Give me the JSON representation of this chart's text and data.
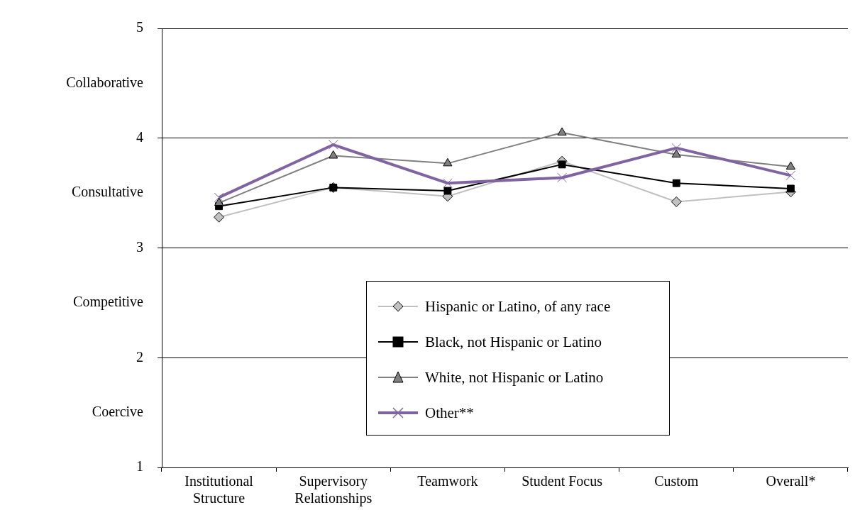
{
  "chart_data": {
    "type": "line",
    "categories": [
      "Institutional\nStructure",
      "Supervisory\nRelationships",
      "Teamwork",
      "Student Focus",
      "Custom",
      "Overall*"
    ],
    "series": [
      {
        "name": "Hispanic or Latino, of any race",
        "color": "#c0c0c0",
        "marker": "diamond",
        "values": [
          3.28,
          3.55,
          3.47,
          3.79,
          3.42,
          3.51
        ]
      },
      {
        "name": "Black, not Hispanic or Latino",
        "color": "#000000",
        "marker": "square",
        "values": [
          3.38,
          3.55,
          3.52,
          3.76,
          3.59,
          3.54
        ]
      },
      {
        "name": "White, not Hispanic or Latino",
        "color": "#808080",
        "marker": "triangle",
        "values": [
          3.41,
          3.84,
          3.77,
          4.05,
          3.85,
          3.74
        ]
      },
      {
        "name": "Other**",
        "color": "#8064a2",
        "marker": "cross",
        "values": [
          3.46,
          3.94,
          3.59,
          3.64,
          3.91,
          3.66
        ]
      }
    ],
    "ylim": [
      1,
      5
    ],
    "yticks": [
      1,
      {
        "value": 1.5,
        "label": "Coercive"
      },
      2,
      {
        "value": 2.5,
        "label": "Competitive"
      },
      3,
      {
        "value": 3.5,
        "label": "Consultative"
      },
      4,
      {
        "value": 4.5,
        "label": "Collaborative"
      },
      5
    ],
    "grid": "y",
    "legend": "bottom"
  }
}
